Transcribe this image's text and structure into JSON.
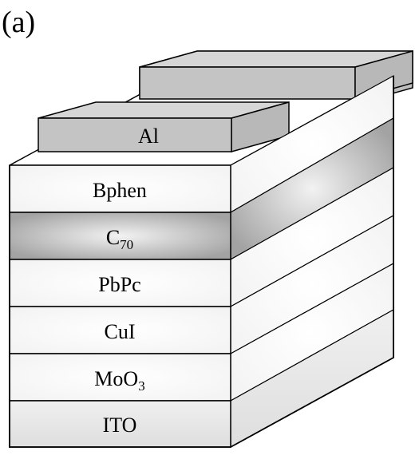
{
  "panel_label": "(a)",
  "contacts": {
    "label": "Al"
  },
  "layers": [
    {
      "id": "bphen",
      "label": "Bphen",
      "fill": "white"
    },
    {
      "id": "c70",
      "base": "C",
      "sub": "70",
      "fill": "gray"
    },
    {
      "id": "pbpc",
      "label": "PbPc",
      "fill": "white"
    },
    {
      "id": "cui",
      "label": "CuI",
      "fill": "white"
    },
    {
      "id": "moo3",
      "base": "MoO",
      "sub": "3",
      "fill": "white"
    },
    {
      "id": "ito",
      "label": "ITO",
      "fill": "light"
    }
  ],
  "colors": {
    "stroke": "#000000",
    "gray": "#a8a8a8",
    "contact": "#c4c4c4",
    "light": "#e6e6e6"
  }
}
